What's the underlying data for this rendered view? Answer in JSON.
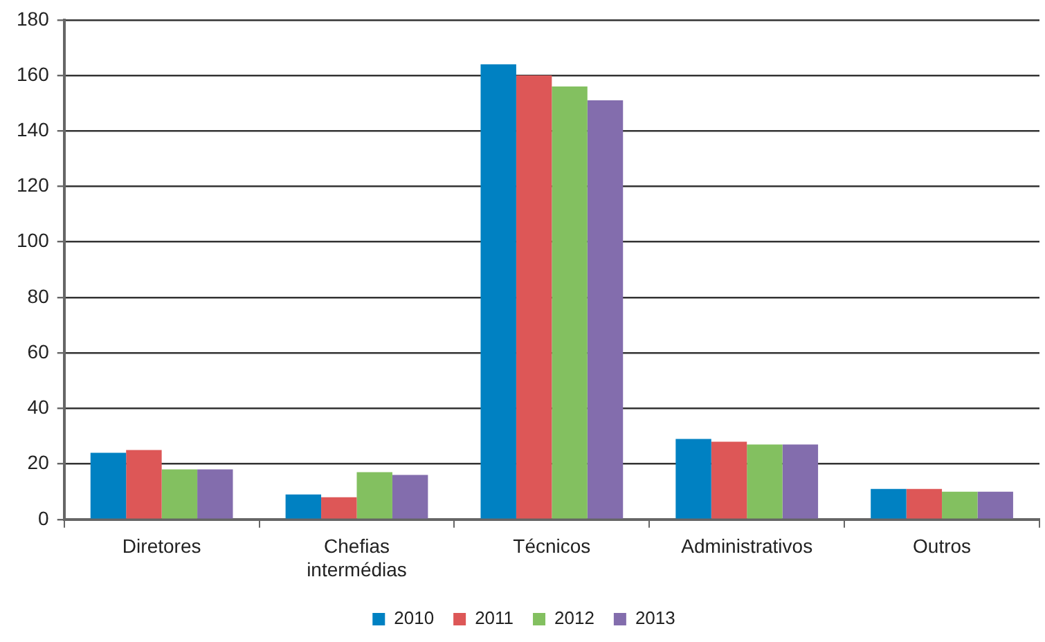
{
  "chart_data": {
    "type": "bar",
    "categories": [
      "Diretores",
      "Chefias intermédias",
      "Técnicos",
      "Administrativos",
      "Outros"
    ],
    "series": [
      {
        "name": "2010",
        "color": "#0081c2",
        "values": [
          24,
          9,
          164,
          29,
          11
        ]
      },
      {
        "name": "2011",
        "color": "#dd5757",
        "values": [
          25,
          8,
          160,
          28,
          11
        ]
      },
      {
        "name": "2012",
        "color": "#83c060",
        "values": [
          18,
          17,
          156,
          27,
          10
        ]
      },
      {
        "name": "2013",
        "color": "#836dad",
        "values": [
          18,
          16,
          151,
          27,
          10
        ]
      }
    ],
    "ylim": [
      0,
      180
    ],
    "yticks": [
      0,
      20,
      40,
      60,
      80,
      100,
      120,
      140,
      160,
      180
    ],
    "grid": "y",
    "legend": "bottom"
  }
}
